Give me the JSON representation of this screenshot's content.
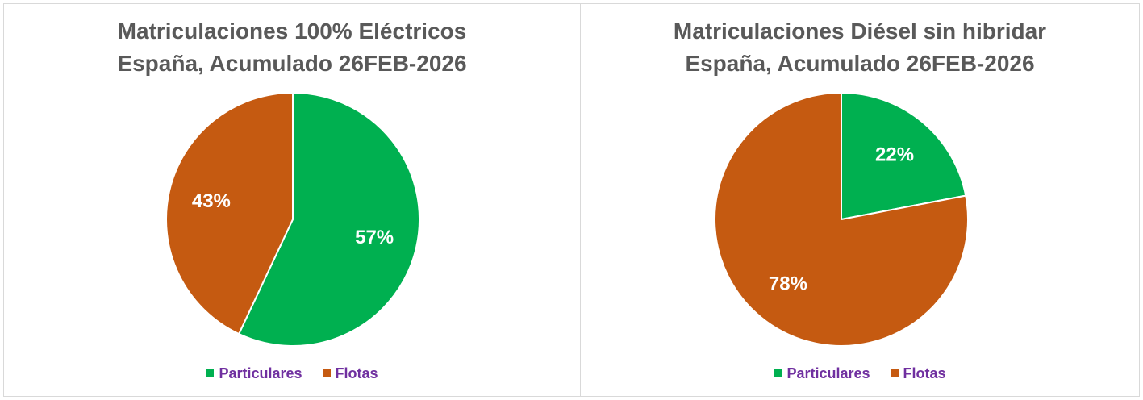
{
  "chart_data": [
    {
      "type": "pie",
      "title_line1": "Matriculaciones 100% Eléctricos",
      "title_line2": "España, Acumulado 26FEB-2026",
      "categories": [
        "Particulares",
        "Flotas"
      ],
      "values": [
        57,
        43
      ],
      "labels": [
        "57%",
        "43%"
      ],
      "colors": [
        "#00b050",
        "#c55a11"
      ],
      "legend_position": "bottom"
    },
    {
      "type": "pie",
      "title_line1": "Matriculaciones Diésel sin hibridar",
      "title_line2": "España, Acumulado 26FEB-2026",
      "categories": [
        "Particulares",
        "Flotas"
      ],
      "values": [
        22,
        78
      ],
      "labels": [
        "22%",
        "78%"
      ],
      "colors": [
        "#00b050",
        "#c55a11"
      ],
      "legend_position": "bottom"
    }
  ]
}
